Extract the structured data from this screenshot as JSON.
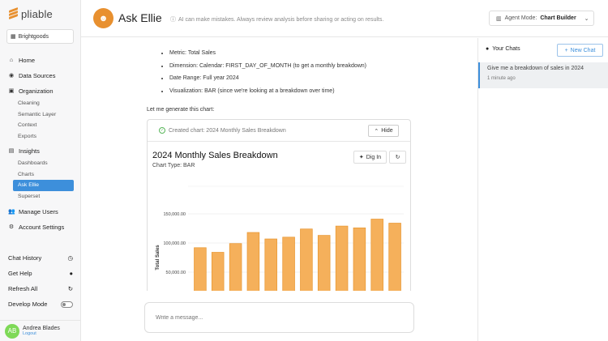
{
  "brand": {
    "name": "pliable"
  },
  "org": {
    "name": "Brightgoods"
  },
  "nav": {
    "home": "Home",
    "data_sources": "Data Sources",
    "organization": "Organization",
    "organization_items": [
      "Cleaning",
      "Semantic Layer",
      "Context",
      "Exports"
    ],
    "insights": "Insights",
    "insights_items": [
      "Dashboards",
      "Charts",
      "Ask Ellie",
      "Superset"
    ],
    "manage_users": "Manage Users",
    "account_settings": "Account Settings"
  },
  "sidebar_bottom": {
    "chat_history": "Chat History",
    "get_help": "Get Help",
    "refresh_all": "Refresh All",
    "develop_mode": "Develop Mode"
  },
  "user": {
    "initials": "AB",
    "name": "Andrea Blades",
    "logout": "Logout"
  },
  "header": {
    "title": "Ask Ellie",
    "disclaimer": "AI can make mistakes. Always review analysis before sharing or acting on results.",
    "agent_mode_label": "Agent Mode:",
    "agent_mode_value": "Chart Builder"
  },
  "message": {
    "bullets": [
      "Metric: Total Sales",
      "Dimension: Calendar: FIRST_DAY_OF_MONTH (to get a monthly breakdown)",
      "Date Range: Full year 2024",
      "Visualization: BAR (since we're looking at a breakdown over time)"
    ],
    "intro": "Let me generate this chart:",
    "created_label": "Created chart: 2024 Monthly Sales Breakdown",
    "hide_label": "Hide",
    "dig_in_label": "Dig In"
  },
  "chart_data": {
    "type": "bar",
    "title": "2024 Monthly Sales Breakdown",
    "subtitle": "Chart Type: BAR",
    "ylabel": "Total Sales",
    "ytick_labels": [
      "150,000.00",
      "100,000.00",
      "50,000.00"
    ],
    "yticks": [
      150000,
      100000,
      50000
    ],
    "values": [
      92000,
      84000,
      99000,
      118000,
      107000,
      110000,
      124000,
      113000,
      129000,
      126000,
      141000,
      134000
    ],
    "bar_color": "#f5b05b",
    "bar_edge_color": "#e8962f"
  },
  "input": {
    "placeholder": "Write a message..."
  },
  "right_panel": {
    "your_chats": "Your Chats",
    "new_chat": "New Chat",
    "chats": [
      {
        "title": "Give me a breakdown of sales in 2024",
        "time": "1 minute ago"
      }
    ]
  },
  "colors": {
    "accent": "#3d8fdb",
    "brand": "#e8902f"
  }
}
